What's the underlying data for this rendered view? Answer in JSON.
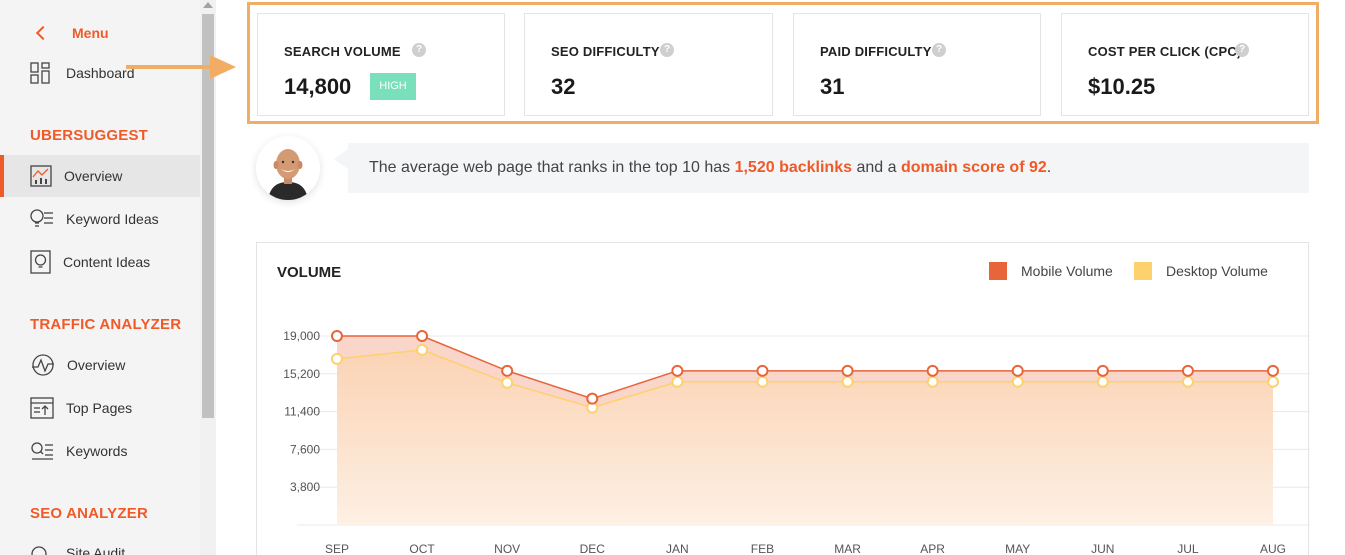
{
  "sidebar": {
    "menu_label": "Menu",
    "dashboard": "Dashboard",
    "sections": [
      {
        "title": "UBERSUGGEST",
        "items": [
          "Overview",
          "Keyword Ideas",
          "Content Ideas"
        ]
      },
      {
        "title": "TRAFFIC ANALYZER",
        "items": [
          "Overview",
          "Top Pages",
          "Keywords"
        ]
      },
      {
        "title": "SEO ANALYZER",
        "items": [
          "Site Audit"
        ]
      }
    ],
    "active_item": "Overview",
    "accent_color": "#f05a28"
  },
  "metrics": [
    {
      "label": "SEARCH VOLUME",
      "value": "14,800",
      "badge": "HIGH",
      "badge_color": "#7ae0bb"
    },
    {
      "label": "SEO DIFFICULTY",
      "value": "32"
    },
    {
      "label": "PAID DIFFICULTY",
      "value": "31"
    },
    {
      "label": "COST PER CLICK (CPC)",
      "value": "$10.25"
    }
  ],
  "tip": {
    "prefix": "The average web page that ranks in the top 10 has ",
    "backlinks": "1,520 backlinks",
    "middle": " and a ",
    "domain_score": "domain score of 92",
    "suffix": "."
  },
  "chart_data": {
    "type": "area",
    "title": "VOLUME",
    "categories": [
      "SEP",
      "OCT",
      "NOV",
      "DEC",
      "JAN",
      "FEB",
      "MAR",
      "APR",
      "MAY",
      "JUN",
      "JUL",
      "AUG"
    ],
    "y_ticks": [
      "19,000",
      "15,200",
      "11,400",
      "7,600",
      "3,800"
    ],
    "ylim": [
      0,
      19000
    ],
    "series": [
      {
        "name": "Mobile Volume",
        "color": "#e8643a",
        "values": [
          19000,
          19000,
          15500,
          12700,
          15500,
          15500,
          15500,
          15500,
          15500,
          15500,
          15500,
          15500
        ]
      },
      {
        "name": "Desktop Volume",
        "color": "#fdd16c",
        "values": [
          16700,
          17600,
          14300,
          11800,
          14400,
          14400,
          14400,
          14400,
          14400,
          14400,
          14400,
          14400
        ]
      }
    ],
    "grid": true,
    "legend_position": "top-right"
  }
}
